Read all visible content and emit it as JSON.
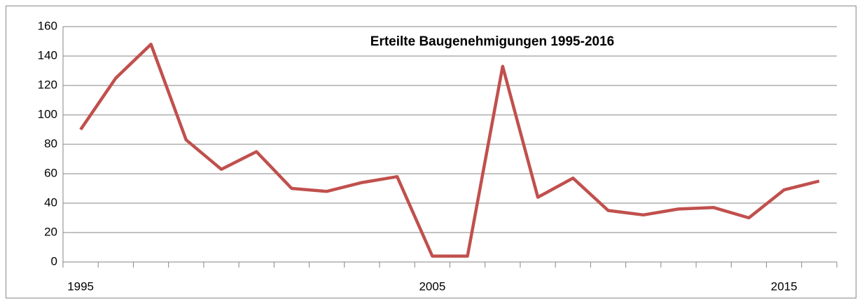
{
  "chart_data": {
    "type": "line",
    "title": "Erteilte Baugenehmigungen 1995-2016",
    "categories": [
      "1995",
      null,
      null,
      null,
      null,
      null,
      null,
      null,
      null,
      null,
      "2005",
      null,
      null,
      null,
      null,
      null,
      null,
      null,
      null,
      null,
      "2015",
      null
    ],
    "series": [
      {
        "color": "#c0504d",
        "values": [
          90,
          125,
          148,
          83,
          63,
          75,
          50,
          48,
          54,
          58,
          4,
          4,
          133,
          44,
          57,
          35,
          32,
          36,
          37,
          30,
          49,
          55
        ]
      }
    ],
    "ylim": [
      0,
      160
    ],
    "yticks": [
      0,
      20,
      40,
      60,
      80,
      100,
      120,
      140,
      160
    ],
    "grid": true
  }
}
